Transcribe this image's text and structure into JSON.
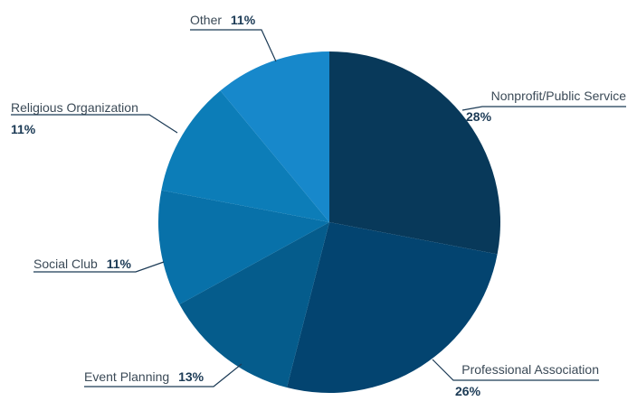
{
  "chart_data": {
    "type": "pie",
    "title": "",
    "start_angle_deg": 0,
    "direction": "clockwise",
    "legend": "none",
    "slices": [
      {
        "label": "Nonprofit/Public Service",
        "value": 28,
        "value_label": "28%",
        "color": "#08395a"
      },
      {
        "label": "Professional Association",
        "value": 26,
        "value_label": "26%",
        "color": "#034470"
      },
      {
        "label": "Event Planning",
        "value": 13,
        "value_label": "13%",
        "color": "#055c8c"
      },
      {
        "label": "Social Club",
        "value": 11,
        "value_label": "11%",
        "color": "#0871a9"
      },
      {
        "label": "Religious Organization",
        "value": 11,
        "value_label": "11%",
        "color": "#0c7db8"
      },
      {
        "label": "Other",
        "value": 11,
        "value_label": "11%",
        "color": "#1788cb"
      }
    ]
  }
}
